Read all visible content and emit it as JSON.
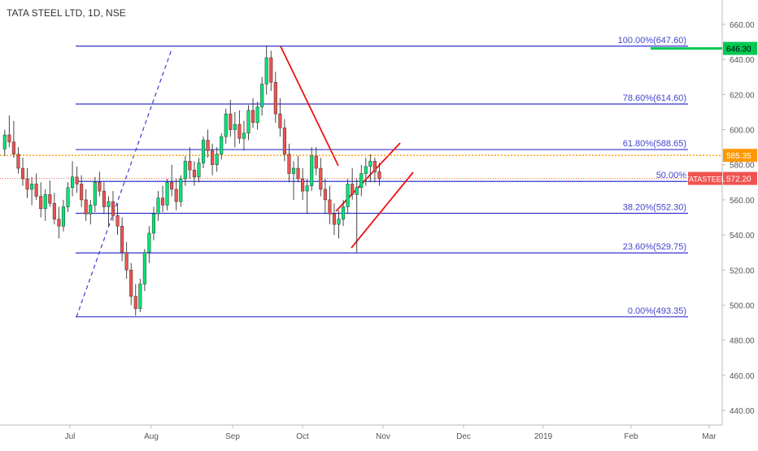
{
  "chart_data": {
    "type": "candlestick",
    "title": "TATA STEEL LTD, 1D, NSE",
    "x_labels": [
      "Jul",
      "Aug",
      "Sep",
      "Oct",
      "Nov",
      "Dec",
      "2019",
      "Feb",
      "Mar"
    ],
    "y_ticks": [
      "660.00",
      "640.00",
      "620.00",
      "600.00",
      "580.00",
      "560.00",
      "540.00",
      "520.00",
      "500.00",
      "480.00",
      "460.00",
      "440.00"
    ],
    "ylim": [
      436,
      668
    ],
    "fib_levels": [
      {
        "label": "100.00%(647.60)",
        "value": 647.6
      },
      {
        "label": "78.60%(614.60)",
        "value": 614.6
      },
      {
        "label": "61.80%(588.65)",
        "value": 588.65
      },
      {
        "label": "50.00%",
        "value": 570.5
      },
      {
        "label": "38.20%(552.30)",
        "value": 552.3
      },
      {
        "label": "23.60%(529.75)",
        "value": 529.75
      },
      {
        "label": "0.00%(493.35)",
        "value": 493.35
      }
    ],
    "price_badges": [
      {
        "label": "646.30",
        "value": 646.3,
        "color": "#00c853",
        "text_color": "#000000"
      },
      {
        "label": "585.35",
        "value": 585.35,
        "color": "#ff9800",
        "text_color": "#ffffff"
      },
      {
        "label": "572.20",
        "value": 572.2,
        "color": "#ef5350",
        "text_color": "#ffffff"
      }
    ],
    "symbol_tag": "TATASTEEL",
    "colors": {
      "up": "#00e676",
      "down": "#ef5350",
      "fib": "#3333cc",
      "trend": "#ee1111",
      "dashed": "#3b3bd6",
      "orange": "#ff9800"
    }
  }
}
